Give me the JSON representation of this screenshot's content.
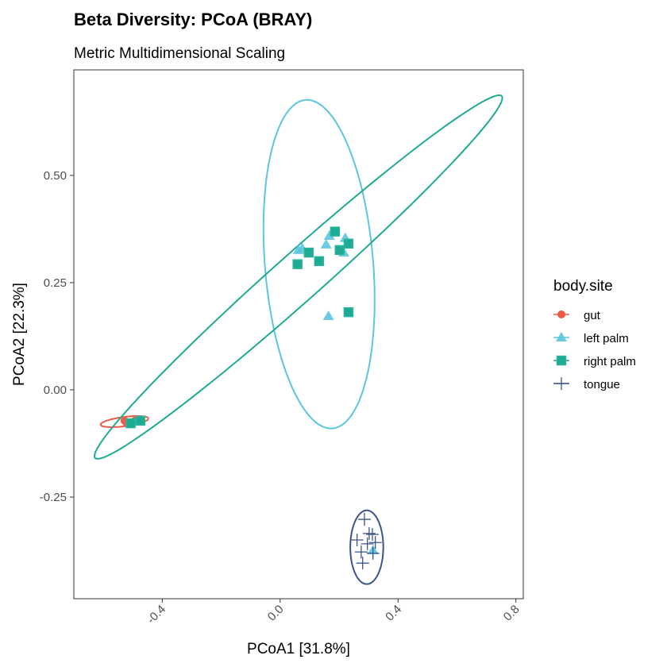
{
  "chart_data": {
    "type": "scatter",
    "title": "Beta Diversity: PCoA (BRAY)",
    "subtitle": "Metric Multidimensional Scaling",
    "xlabel": "PCoA1 [31.8%]",
    "ylabel": "PCoA2 [22.3%]",
    "xlim": [
      -0.7,
      0.825
    ],
    "ylim": [
      -0.487,
      0.746
    ],
    "xticks": [
      -0.4,
      0.0,
      0.4,
      0.8
    ],
    "xtick_labels": [
      "-0.4",
      "0.0",
      "0.4",
      "0.8"
    ],
    "yticks": [
      -0.25,
      0.0,
      0.25,
      0.5
    ],
    "ytick_labels": [
      "-0.25",
      "0.00",
      "0.25",
      "0.50"
    ],
    "grid": false,
    "legend": {
      "title": "body.site",
      "placement": "right"
    },
    "series": [
      {
        "name": "gut",
        "color": "#EF5A45",
        "shape": "circle",
        "x": [
          -0.528,
          -0.52,
          -0.493,
          -0.48
        ],
        "y": [
          -0.072,
          -0.078,
          -0.072,
          -0.07
        ],
        "ellipse": {
          "center": [
            -0.528,
            -0.074
          ],
          "major_end": [
            -0.447,
            -0.067
          ],
          "minor_end": [
            -0.528,
            -0.085
          ]
        }
      },
      {
        "name": "left palm",
        "color": "#5BC6DE",
        "shape": "triangle",
        "x": [
          0.062,
          0.075,
          0.167,
          0.156,
          0.221,
          0.216,
          0.164,
          0.315
        ],
        "y": [
          0.326,
          0.33,
          0.359,
          0.339,
          0.354,
          0.32,
          0.172,
          -0.374
        ],
        "ellipse": {
          "center": [
            0.132,
            0.293
          ],
          "major_end": [
            0.086,
            0.676
          ],
          "minor_end": [
            0.315,
            0.304
          ]
        }
      },
      {
        "name": "right palm",
        "color": "#1FAA93",
        "shape": "square",
        "x": [
          0.186,
          0.097,
          0.059,
          0.132,
          0.202,
          0.232,
          0.232,
          -0.507,
          -0.474
        ],
        "y": [
          0.369,
          0.32,
          0.293,
          0.3,
          0.326,
          0.341,
          0.181,
          -0.078,
          -0.072
        ],
        "ellipse": {
          "center": [
            0.062,
            0.263
          ],
          "major_end": [
            0.752,
            0.685
          ],
          "minor_end": [
            0.116,
            0.222
          ]
        }
      },
      {
        "name": "tongue",
        "color": "#3C5488",
        "shape": "cross",
        "x": [
          0.286,
          0.302,
          0.313,
          0.261,
          0.323,
          0.296,
          0.275,
          0.315,
          0.28
        ],
        "y": [
          -0.302,
          -0.335,
          -0.337,
          -0.35,
          -0.356,
          -0.359,
          -0.378,
          -0.381,
          -0.404
        ],
        "ellipse": {
          "center": [
            0.294,
            -0.367
          ],
          "major_end": [
            0.294,
            -0.281
          ],
          "minor_end": [
            0.35,
            -0.367
          ]
        }
      }
    ]
  }
}
